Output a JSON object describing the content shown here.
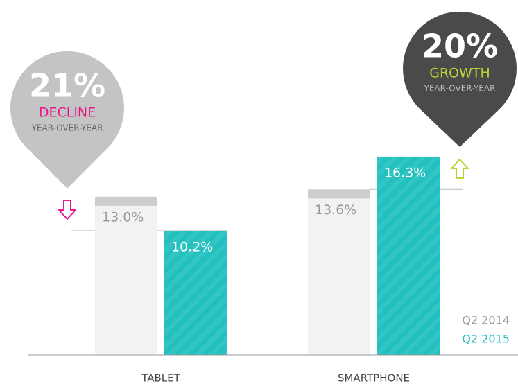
{
  "chart_data": {
    "type": "bar",
    "categories": [
      "TABLET",
      "SMARTPHONE"
    ],
    "series": [
      {
        "name": "Q2 2014",
        "color": "#f2f2f2",
        "values": [
          13.0,
          13.6
        ],
        "value_labels": [
          "13.0%",
          "13.6%"
        ]
      },
      {
        "name": "Q2 2015",
        "color": "#22c0be",
        "values": [
          10.2,
          16.3
        ],
        "value_labels": [
          "10.2%",
          "16.3%"
        ]
      }
    ],
    "ylim": [
      0,
      29
    ],
    "annotations": [
      {
        "value": "21%",
        "label": "DECLINE",
        "note": "YEAR-OVER-YEAR",
        "color": "#e6198c"
      },
      {
        "value": "20%",
        "label": "GROWTH",
        "note": "YEAR-OVER-YEAR",
        "color": "#b5d334"
      }
    ]
  }
}
